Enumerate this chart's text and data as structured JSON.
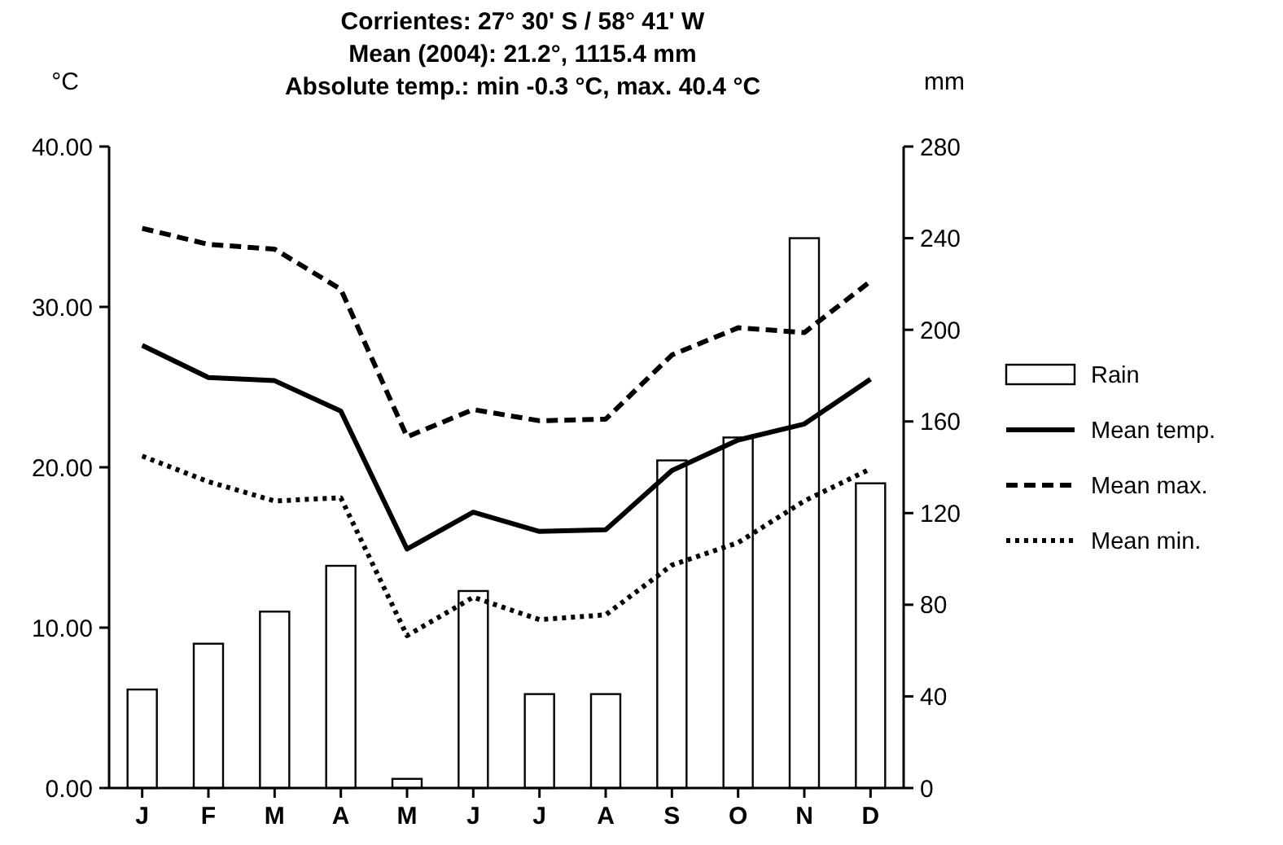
{
  "chart_data": {
    "type": "line",
    "title": "Corrientes: 27° 30' S / 58° 41' W",
    "subtitle": "Mean (2004): 21.2°, 1115.4 mm",
    "annotations": [
      "Absolute temp.: min -0.3 °C, max. 40.4 °C"
    ],
    "ylabel": "°C",
    "y2label": "mm",
    "categories": [
      "J",
      "F",
      "M",
      "A",
      "M",
      "J",
      "J",
      "A",
      "S",
      "O",
      "N",
      "D"
    ],
    "series": [
      {
        "name": "Rain",
        "type": "bar",
        "axis": "y2",
        "color": "#ffffff",
        "values": [
          43,
          63,
          77,
          97,
          4,
          86,
          41,
          41,
          143,
          153,
          240,
          133
        ]
      },
      {
        "name": "Mean temp.",
        "color": "#000000",
        "line_style": "solid",
        "values": [
          27.6,
          25.6,
          25.4,
          23.5,
          14.9,
          17.2,
          16.0,
          16.1,
          19.8,
          21.7,
          22.7,
          25.5
        ]
      },
      {
        "name": "Mean max.",
        "color": "#000000",
        "line_style": "dashed",
        "values": [
          34.9,
          33.9,
          33.6,
          31.1,
          21.9,
          23.6,
          22.9,
          23.0,
          27.0,
          28.7,
          28.4,
          31.6
        ]
      },
      {
        "name": "Mean min.",
        "color": "#000000",
        "line_style": "dotted",
        "values": [
          20.7,
          19.1,
          17.9,
          18.1,
          9.5,
          11.9,
          10.5,
          10.8,
          13.9,
          15.3,
          17.9,
          19.9
        ]
      }
    ],
    "ylim": [
      0,
      40
    ],
    "yticks": [
      {
        "value": 0,
        "label": "0.00"
      },
      {
        "value": 10,
        "label": "10.00"
      },
      {
        "value": 20,
        "label": "20.00"
      },
      {
        "value": 30,
        "label": "30.00"
      },
      {
        "value": 40,
        "label": "40.00"
      }
    ],
    "y2lim": [
      0,
      280
    ],
    "y2ticks": [
      0,
      40,
      80,
      120,
      160,
      200,
      240,
      280
    ],
    "grid": false,
    "legend": "right",
    "marker": "none"
  }
}
